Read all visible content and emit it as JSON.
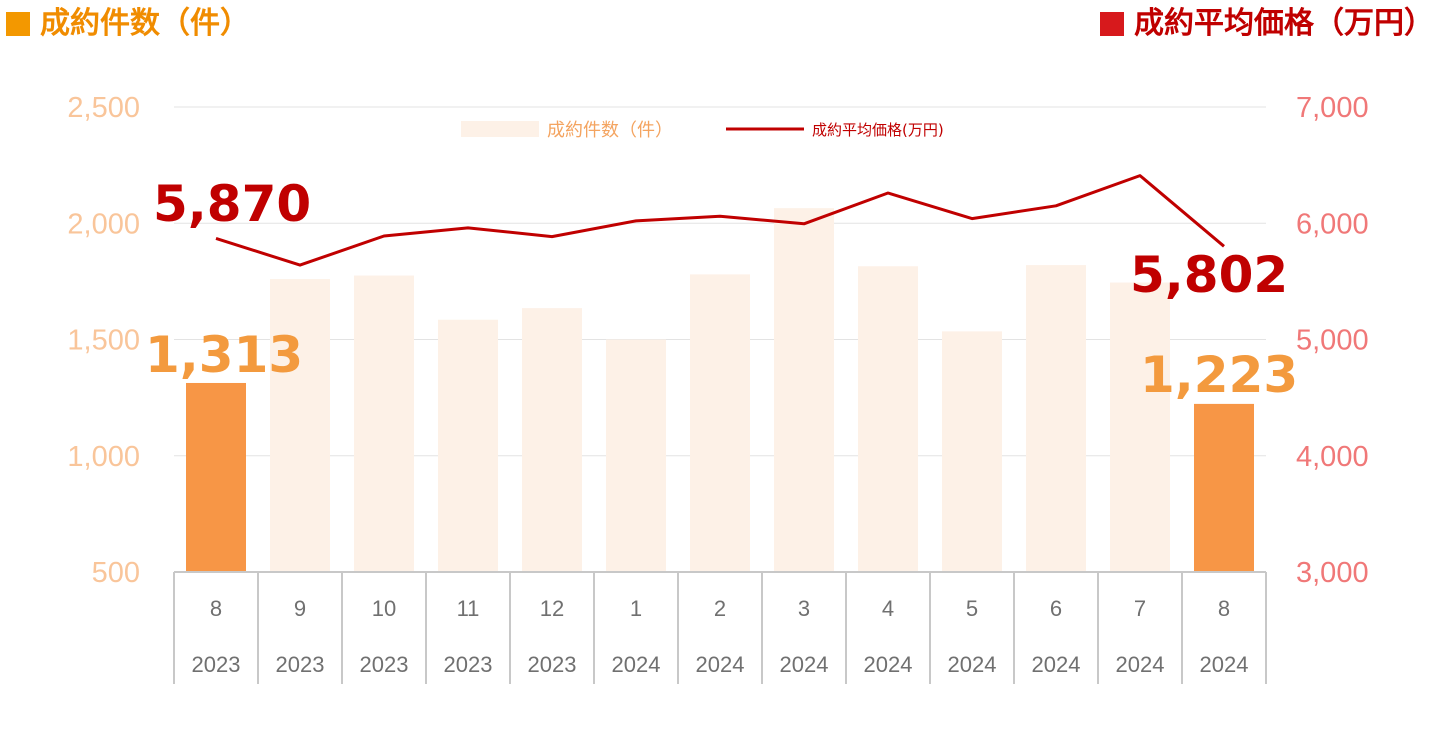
{
  "header": {
    "left_title": "成約件数（件）",
    "right_title": "成約平均価格（万円）"
  },
  "legend": {
    "bar_label": "成約件数（件）",
    "line_label": "成約平均価格(万円)"
  },
  "colors": {
    "bar_highlight": "#f79646",
    "bar_faded": "#fdf1e7",
    "line": "#c00000",
    "left_axis": "#f9c59a",
    "right_axis": "#f07878",
    "grid": "#e3e3e3"
  },
  "callouts": {
    "first_count": "1,313",
    "last_count": "1,223",
    "first_price": "5,870",
    "last_price": "5,802"
  },
  "chart_data": {
    "type": "bar",
    "categories": [
      {
        "month": "8",
        "year": "2023"
      },
      {
        "month": "9",
        "year": "2023"
      },
      {
        "month": "10",
        "year": "2023"
      },
      {
        "month": "11",
        "year": "2023"
      },
      {
        "month": "12",
        "year": "2023"
      },
      {
        "month": "1",
        "year": "2024"
      },
      {
        "month": "2",
        "year": "2024"
      },
      {
        "month": "3",
        "year": "2024"
      },
      {
        "month": "4",
        "year": "2024"
      },
      {
        "month": "5",
        "year": "2024"
      },
      {
        "month": "6",
        "year": "2024"
      },
      {
        "month": "7",
        "year": "2024"
      },
      {
        "month": "8",
        "year": "2024"
      }
    ],
    "series": [
      {
        "name": "成約件数（件）",
        "type": "bar",
        "axis": "left",
        "values": [
          1313,
          1760,
          1775,
          1585,
          1635,
          1500,
          1780,
          2065,
          1815,
          1535,
          1820,
          1745,
          1223
        ],
        "highlight": [
          true,
          false,
          false,
          false,
          false,
          false,
          false,
          false,
          false,
          false,
          false,
          false,
          true
        ]
      },
      {
        "name": "成約平均価格(万円)",
        "type": "line",
        "axis": "right",
        "values": [
          5870,
          5640,
          5890,
          5960,
          5885,
          6020,
          6060,
          5995,
          6260,
          6040,
          6150,
          6410,
          5802
        ]
      }
    ],
    "left_axis": {
      "min": 500,
      "max": 2500,
      "ticks": [
        "2,500",
        "2,000",
        "1,500",
        "1,000",
        "500"
      ],
      "tick_values": [
        2500,
        2000,
        1500,
        1000,
        500
      ]
    },
    "right_axis": {
      "min": 3000,
      "max": 7000,
      "ticks": [
        "7,000",
        "6,000",
        "5,000",
        "4,000",
        "3,000"
      ],
      "tick_values": [
        7000,
        6000,
        5000,
        4000,
        3000
      ]
    },
    "grid": true,
    "legend_position": "top-center"
  }
}
